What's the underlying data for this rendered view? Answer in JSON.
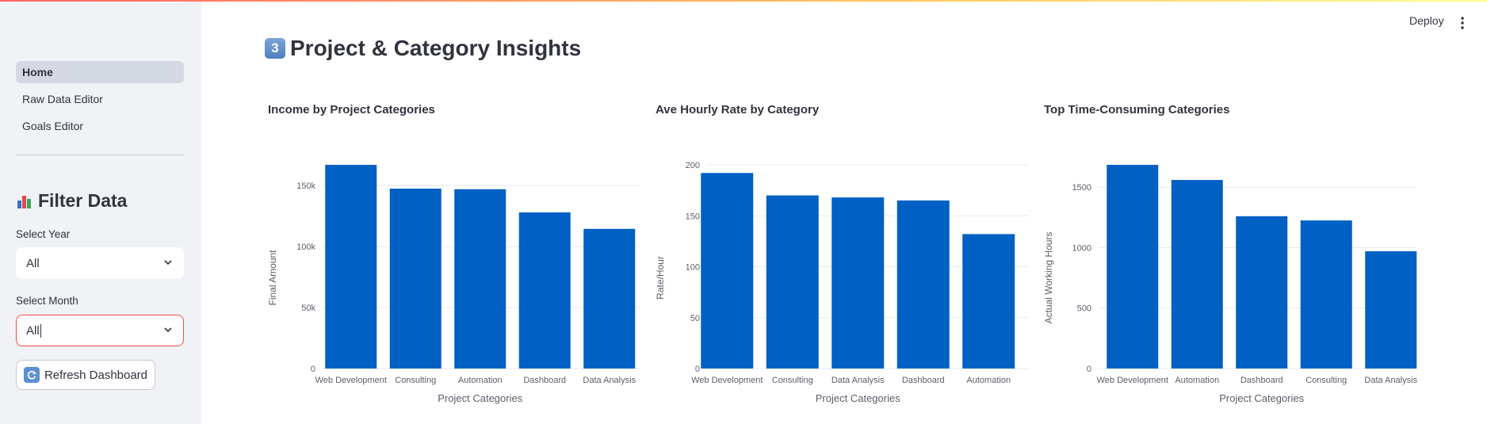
{
  "header": {
    "deploy_label": "Deploy",
    "menu_icon": "vertical-dots-icon"
  },
  "sidebar": {
    "nav": [
      {
        "label": "Home",
        "active": true
      },
      {
        "label": "Raw Data Editor",
        "active": false
      },
      {
        "label": "Goals Editor",
        "active": false
      }
    ],
    "filter_title": "Filter Data",
    "year": {
      "label": "Select Year",
      "value": "All"
    },
    "month": {
      "label": "Select Month",
      "value": "All"
    },
    "refresh_label": "Refresh Dashboard"
  },
  "main": {
    "title_number": "3",
    "title": "Project & Category Insights"
  },
  "colors": {
    "bar": "#0060c4",
    "grid": "#e6e9ef",
    "axis_text": "#5c5e6b"
  },
  "chart_data": [
    {
      "type": "bar",
      "title": "Income by Project Categories",
      "xlabel": "Project Categories",
      "ylabel": "Final Amount",
      "categories": [
        "Web Development",
        "Consulting",
        "Automation",
        "Dashboard",
        "Data Analysis"
      ],
      "values": [
        167000,
        147500,
        147000,
        128000,
        114500
      ],
      "ylim": [
        0,
        167000
      ],
      "yticks": [
        0,
        50000,
        100000,
        150000
      ],
      "ytick_labels": [
        "0",
        "50k",
        "100k",
        "150k"
      ],
      "grid": true
    },
    {
      "type": "bar",
      "title": "Ave Hourly Rate by Category",
      "xlabel": "Project Categories",
      "ylabel": "Rate/Hour",
      "categories": [
        "Web Development",
        "Consulting",
        "Data Analysis",
        "Dashboard",
        "Automation"
      ],
      "values": [
        192,
        170,
        168,
        165,
        132
      ],
      "ylim": [
        0,
        200
      ],
      "yticks": [
        0,
        50,
        100,
        150,
        200
      ],
      "ytick_labels": [
        "0",
        "50",
        "100",
        "150",
        "200"
      ],
      "grid": true
    },
    {
      "type": "bar",
      "title": "Top Time-Consuming Categories",
      "xlabel": "Project Categories",
      "ylabel": "Actual Working Hours",
      "categories": [
        "Web Development",
        "Automation",
        "Dashboard",
        "Consulting",
        "Data Analysis"
      ],
      "values": [
        1685,
        1560,
        1260,
        1225,
        970
      ],
      "ylim": [
        0,
        1685
      ],
      "yticks": [
        0,
        500,
        1000,
        1500
      ],
      "ytick_labels": [
        "0",
        "500",
        "1000",
        "1500"
      ],
      "grid": true
    }
  ]
}
